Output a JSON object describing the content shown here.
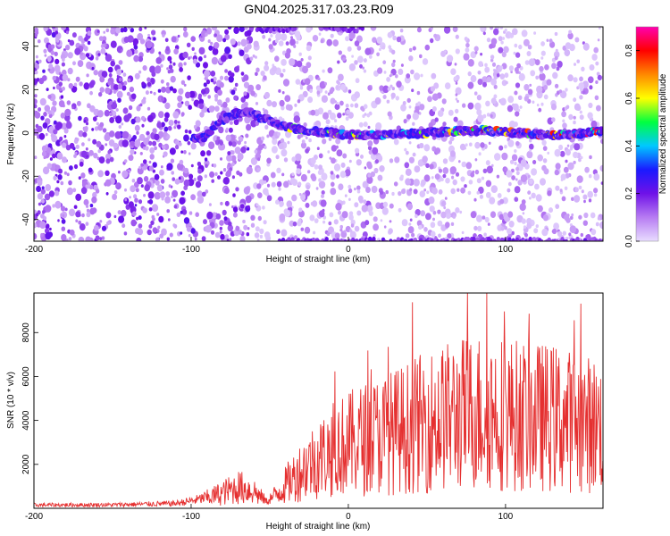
{
  "title": "GN04.2025.317.03.23.R09",
  "chart_data": [
    {
      "type": "heatmap",
      "xlabel": "Height of straight line (km)",
      "ylabel": "Frequency (Hz)",
      "xlim": [
        -200,
        162
      ],
      "ylim": [
        -50,
        49
      ],
      "xticks": [
        -200,
        -100,
        0,
        100
      ],
      "yticks": [
        -40,
        -20,
        0,
        20,
        40
      ],
      "colorbar": {
        "label": "Normalized spectral amplitude",
        "range": [
          0,
          0.9
        ],
        "ticks": [
          "0.0",
          "0.2",
          "0.4",
          "0.6",
          "0.8"
        ],
        "colors": [
          "#e8dcff",
          "#b77cf2",
          "#6f12e8",
          "#1a1aff",
          "#00c8ff",
          "#00ff40",
          "#ffff00",
          "#ff8800",
          "#ff0000",
          "#ff00b0"
        ]
      },
      "trace": {
        "points": [
          [
            -100,
            -3
          ],
          [
            -92,
            -2
          ],
          [
            -85,
            3
          ],
          [
            -75,
            8
          ],
          [
            -65,
            10
          ],
          [
            -55,
            7
          ],
          [
            -45,
            4
          ],
          [
            -35,
            2
          ],
          [
            -25,
            1
          ],
          [
            -10,
            0
          ],
          [
            0,
            -1
          ],
          [
            20,
            -1
          ],
          [
            50,
            0
          ],
          [
            70,
            1
          ],
          [
            90,
            1
          ],
          [
            110,
            0
          ],
          [
            130,
            -1
          ],
          [
            150,
            0
          ],
          [
            162,
            1
          ]
        ]
      },
      "bands": [
        [
          -45,
          -50
        ],
        [
          -58,
          48
        ],
        [
          -15,
          48
        ]
      ]
    },
    {
      "type": "line",
      "xlabel": "Height of straight line (km)",
      "ylabel": "SNR (10 * v/v)",
      "xlim": [
        -200,
        162
      ],
      "ylim": [
        0,
        9800
      ],
      "xticks": [
        -200,
        -100,
        0,
        100
      ],
      "yticks": [
        2000,
        4000,
        6000,
        8000
      ],
      "color": "#e53030",
      "envelope": [
        [
          -200,
          150
        ],
        [
          -150,
          160
        ],
        [
          -110,
          220
        ],
        [
          -95,
          400
        ],
        [
          -80,
          800
        ],
        [
          -70,
          1100
        ],
        [
          -60,
          900
        ],
        [
          -52,
          300
        ],
        [
          -45,
          800
        ],
        [
          -35,
          1600
        ],
        [
          -25,
          2300
        ],
        [
          -15,
          2800
        ],
        [
          -5,
          3200
        ],
        [
          10,
          3600
        ],
        [
          30,
          4000
        ],
        [
          50,
          4500
        ],
        [
          70,
          4900
        ],
        [
          90,
          5100
        ],
        [
          110,
          4800
        ],
        [
          130,
          4700
        ],
        [
          150,
          4400
        ],
        [
          162,
          4300
        ]
      ]
    }
  ]
}
